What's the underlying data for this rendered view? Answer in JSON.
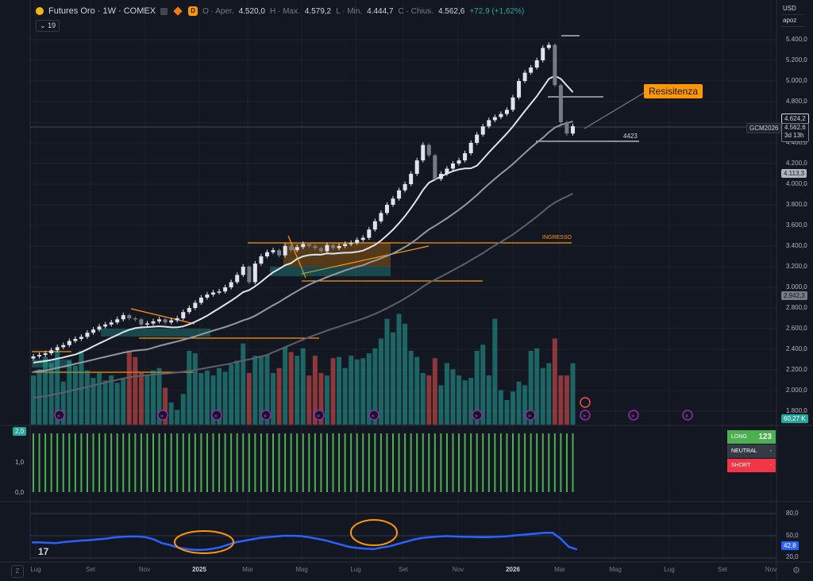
{
  "header": {
    "title": "Futures Oro · 1W · COMEX",
    "badge": "D",
    "open_label": "O",
    "open_prefix": "Aper.",
    "open": "4.520,0",
    "high_label": "H",
    "high_prefix": "Max.",
    "high": "4.579,2",
    "low_label": "L",
    "low_prefix": "Min.",
    "low": "4.444,7",
    "close_label": "C",
    "close_prefix": "Chius.",
    "close": "4.562,6",
    "change": "+72,9 (+1,62%)",
    "indicator_count": "19"
  },
  "top_right": {
    "currency": "USD",
    "mode": "apoz"
  },
  "price_axis": [
    "5.400,0",
    "5.200,0",
    "5.000,0",
    "4.800,0",
    "4.400,0",
    "4.200,0",
    "4.000,0",
    "3.800,0",
    "3.600,0",
    "3.400,0",
    "3.200,0",
    "3.000,0",
    "2.800,0",
    "2.600,0",
    "2.400,0",
    "2.200,0",
    "2.000,0",
    "1.800,0"
  ],
  "price_tags": {
    "ma_fast": "4.624,2",
    "last": "4.562,6",
    "countdown": "3d 13h",
    "symbol": "GCM2026",
    "ma_mid": "4.113,3",
    "ma_slow": "2.942,3",
    "volume": "60,27 K"
  },
  "annotations": {
    "resistance": "Resisitenza",
    "level": "4423",
    "entry": "INGRESSO"
  },
  "x_axis": [
    "Lug",
    "Set",
    "Nov",
    "2025",
    "Mar",
    "Mag",
    "Lug",
    "Set",
    "Nov",
    "2026",
    "Mar",
    "Mag",
    "Lug",
    "Set",
    "Nov"
  ],
  "indicator1": {
    "axis": [
      "2,0",
      "1,0",
      "0,0"
    ],
    "long_label": "LONG",
    "long_value": "123",
    "neutral_label": "NEUTRAL",
    "neutral_value": "-",
    "short_label": "SHORT",
    "short_value": "-"
  },
  "indicator2": {
    "axis": [
      "80,0",
      "50,0",
      "42,8",
      "20,0"
    ]
  },
  "bottom": {
    "z": "Z"
  },
  "colors": {
    "up": "#26a69a",
    "down": "#ef5350",
    "accent": "#ff9800",
    "candle_up": "#e0e3eb",
    "candle_down": "#787b86",
    "rsi": "#2962ff"
  },
  "chart_data": {
    "type": "candlestick",
    "symbol": "GCM2026",
    "timeframe": "1W",
    "ylim": [
      1800,
      5500
    ],
    "closes": [
      2330,
      2345,
      2360,
      2390,
      2420,
      2440,
      2480,
      2500,
      2520,
      2560,
      2590,
      2620,
      2640,
      2660,
      2690,
      2730,
      2700,
      2690,
      2640,
      2650,
      2670,
      2690,
      2660,
      2680,
      2700,
      2760,
      2800,
      2850,
      2900,
      2930,
      2950,
      2960,
      3000,
      3050,
      3120,
      3200,
      3050,
      3230,
      3300,
      3340,
      3360,
      3310,
      3400,
      3360,
      3390,
      3420,
      3400,
      3380,
      3350,
      3410,
      3380,
      3400,
      3420,
      3430,
      3460,
      3480,
      3560,
      3640,
      3720,
      3800,
      3860,
      3940,
      4000,
      4100,
      4230,
      4380,
      4280,
      4050,
      4100,
      4150,
      4200,
      4230,
      4300,
      4400,
      4480,
      4560,
      4620,
      4650,
      4680,
      4720,
      4840,
      5000,
      5080,
      5130,
      5200,
      5320,
      5350,
      4960,
      4600,
      4490,
      4562
    ],
    "volume": [
      40,
      45,
      55,
      50,
      60,
      35,
      52,
      48,
      60,
      44,
      38,
      42,
      36,
      40,
      34,
      38,
      60,
      55,
      42,
      40,
      44,
      46,
      30,
      18,
      12,
      25,
      60,
      58,
      42,
      44,
      40,
      46,
      43,
      49,
      52,
      66,
      42,
      56,
      56,
      57,
      42,
      46,
      63,
      59,
      56,
      62,
      40,
      56,
      42,
      40,
      54,
      55,
      46,
      56,
      53,
      54,
      58,
      62,
      70,
      86,
      75,
      90,
      82,
      60,
      55,
      42,
      40,
      54,
      32,
      50,
      45,
      40,
      36,
      38,
      60,
      65,
      40,
      86,
      28,
      20,
      27,
      35,
      32,
      60,
      62,
      46,
      50,
      70,
      40,
      40,
      50
    ]
  }
}
